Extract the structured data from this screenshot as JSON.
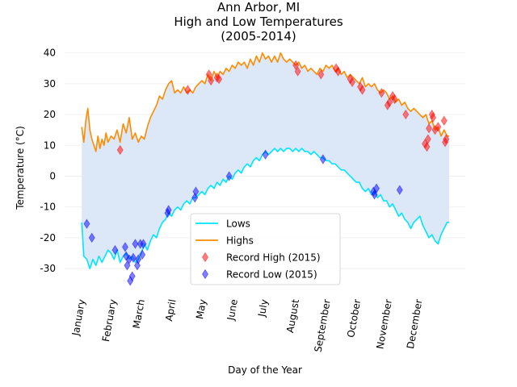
{
  "chart_data": {
    "type": "line",
    "title": [
      "Ann Arbor, MI",
      "High and Low Temperatures",
      "(2005-2014)"
    ],
    "xlabel": "Day of the Year",
    "ylabel": "Temperature (°C)",
    "xlim": [
      -16,
      381
    ],
    "ylim": [
      -36,
      42
    ],
    "yticks": [
      -30,
      -20,
      -10,
      0,
      10,
      20,
      30,
      40
    ],
    "grid": true,
    "legend_position": "lower-center",
    "month_ticks": [
      {
        "day": 1,
        "label": "January"
      },
      {
        "day": 32,
        "label": "February"
      },
      {
        "day": 60,
        "label": "March"
      },
      {
        "day": 91,
        "label": "April"
      },
      {
        "day": 121,
        "label": "May"
      },
      {
        "day": 152,
        "label": "June"
      },
      {
        "day": 182,
        "label": "July"
      },
      {
        "day": 213,
        "label": "August"
      },
      {
        "day": 244,
        "label": "September"
      },
      {
        "day": 274,
        "label": "October"
      },
      {
        "day": 305,
        "label": "November"
      },
      {
        "day": 335,
        "label": "December"
      }
    ],
    "fill_color": "#dce8f8",
    "series": [
      {
        "name": "Lows",
        "color": "#00e5ff",
        "points": [
          [
            1,
            -15
          ],
          [
            3,
            -26
          ],
          [
            6,
            -27
          ],
          [
            9,
            -30
          ],
          [
            12,
            -27
          ],
          [
            15,
            -29
          ],
          [
            18,
            -26
          ],
          [
            21,
            -28
          ],
          [
            24,
            -26
          ],
          [
            27,
            -24
          ],
          [
            30,
            -25
          ],
          [
            33,
            -27
          ],
          [
            36,
            -24
          ],
          [
            39,
            -28
          ],
          [
            42,
            -26
          ],
          [
            45,
            -25
          ],
          [
            48,
            -27
          ],
          [
            51,
            -26
          ],
          [
            54,
            -28
          ],
          [
            57,
            -27
          ],
          [
            60,
            -25
          ],
          [
            63,
            -22
          ],
          [
            66,
            -24
          ],
          [
            69,
            -21
          ],
          [
            72,
            -19
          ],
          [
            75,
            -20
          ],
          [
            78,
            -17
          ],
          [
            81,
            -15
          ],
          [
            84,
            -14
          ],
          [
            87,
            -12
          ],
          [
            90,
            -13
          ],
          [
            93,
            -11
          ],
          [
            96,
            -10
          ],
          [
            99,
            -11
          ],
          [
            102,
            -9
          ],
          [
            105,
            -8
          ],
          [
            108,
            -9
          ],
          [
            111,
            -7
          ],
          [
            114,
            -7
          ],
          [
            117,
            -6
          ],
          [
            120,
            -5
          ],
          [
            123,
            -6
          ],
          [
            126,
            -4
          ],
          [
            129,
            -3
          ],
          [
            132,
            -4
          ],
          [
            135,
            -2
          ],
          [
            138,
            -3
          ],
          [
            141,
            -1
          ],
          [
            144,
            -2
          ],
          [
            147,
            0
          ],
          [
            150,
            -1
          ],
          [
            153,
            1
          ],
          [
            156,
            2
          ],
          [
            159,
            1
          ],
          [
            162,
            3
          ],
          [
            165,
            4
          ],
          [
            168,
            3
          ],
          [
            171,
            5
          ],
          [
            174,
            6
          ],
          [
            177,
            5
          ],
          [
            180,
            7
          ],
          [
            183,
            8
          ],
          [
            186,
            7
          ],
          [
            189,
            8
          ],
          [
            192,
            9
          ],
          [
            195,
            8
          ],
          [
            198,
            9
          ],
          [
            201,
            8
          ],
          [
            204,
            9
          ],
          [
            207,
            9
          ],
          [
            210,
            8
          ],
          [
            213,
            9
          ],
          [
            216,
            8
          ],
          [
            219,
            9
          ],
          [
            222,
            8
          ],
          [
            225,
            8
          ],
          [
            228,
            7
          ],
          [
            231,
            8
          ],
          [
            234,
            7
          ],
          [
            237,
            6
          ],
          [
            240,
            6
          ],
          [
            243,
            5
          ],
          [
            246,
            5
          ],
          [
            249,
            4
          ],
          [
            252,
            4
          ],
          [
            255,
            3
          ],
          [
            258,
            2
          ],
          [
            261,
            2
          ],
          [
            264,
            1
          ],
          [
            267,
            0
          ],
          [
            270,
            -1
          ],
          [
            273,
            -2
          ],
          [
            276,
            -2
          ],
          [
            279,
            -4
          ],
          [
            282,
            -5
          ],
          [
            285,
            -4
          ],
          [
            288,
            -6
          ],
          [
            291,
            -5
          ],
          [
            294,
            -7
          ],
          [
            297,
            -6
          ],
          [
            300,
            -8
          ],
          [
            303,
            -8
          ],
          [
            306,
            -10
          ],
          [
            309,
            -9
          ],
          [
            312,
            -11
          ],
          [
            315,
            -13
          ],
          [
            318,
            -12
          ],
          [
            321,
            -14
          ],
          [
            324,
            -15
          ],
          [
            327,
            -17
          ],
          [
            330,
            -15
          ],
          [
            333,
            -14
          ],
          [
            336,
            -13
          ],
          [
            339,
            -16
          ],
          [
            342,
            -18
          ],
          [
            345,
            -20
          ],
          [
            348,
            -19
          ],
          [
            351,
            -21
          ],
          [
            354,
            -22
          ],
          [
            357,
            -19
          ],
          [
            360,
            -17
          ],
          [
            363,
            -15
          ],
          [
            365,
            -15
          ]
        ]
      },
      {
        "name": "Highs",
        "color": "#ff8c00",
        "points": [
          [
            1,
            16
          ],
          [
            3,
            11
          ],
          [
            5,
            18
          ],
          [
            7,
            22
          ],
          [
            9,
            15
          ],
          [
            11,
            12
          ],
          [
            13,
            10
          ],
          [
            15,
            8
          ],
          [
            17,
            13
          ],
          [
            19,
            9
          ],
          [
            21,
            12
          ],
          [
            23,
            10
          ],
          [
            25,
            14
          ],
          [
            27,
            11
          ],
          [
            30,
            13
          ],
          [
            33,
            12
          ],
          [
            36,
            15
          ],
          [
            39,
            11
          ],
          [
            42,
            17
          ],
          [
            45,
            14
          ],
          [
            48,
            19
          ],
          [
            51,
            12
          ],
          [
            54,
            14
          ],
          [
            57,
            11
          ],
          [
            60,
            13
          ],
          [
            63,
            12
          ],
          [
            66,
            16
          ],
          [
            69,
            19
          ],
          [
            72,
            21
          ],
          [
            75,
            23
          ],
          [
            78,
            26
          ],
          [
            81,
            25
          ],
          [
            84,
            28
          ],
          [
            87,
            30
          ],
          [
            90,
            31
          ],
          [
            93,
            27
          ],
          [
            96,
            28
          ],
          [
            99,
            27
          ],
          [
            102,
            29
          ],
          [
            105,
            27
          ],
          [
            108,
            28
          ],
          [
            111,
            27
          ],
          [
            114,
            29
          ],
          [
            117,
            30
          ],
          [
            120,
            31
          ],
          [
            123,
            30
          ],
          [
            126,
            33
          ],
          [
            129,
            31
          ],
          [
            132,
            34
          ],
          [
            135,
            32
          ],
          [
            138,
            34
          ],
          [
            141,
            33
          ],
          [
            144,
            35
          ],
          [
            147,
            34
          ],
          [
            150,
            36
          ],
          [
            153,
            35
          ],
          [
            156,
            37
          ],
          [
            159,
            36
          ],
          [
            162,
            37
          ],
          [
            165,
            35
          ],
          [
            168,
            38
          ],
          [
            171,
            36
          ],
          [
            174,
            39
          ],
          [
            177,
            37
          ],
          [
            180,
            40
          ],
          [
            183,
            38
          ],
          [
            186,
            39
          ],
          [
            189,
            37
          ],
          [
            192,
            39
          ],
          [
            195,
            37
          ],
          [
            198,
            40
          ],
          [
            201,
            38
          ],
          [
            204,
            37
          ],
          [
            207,
            38
          ],
          [
            210,
            37
          ],
          [
            213,
            36
          ],
          [
            216,
            37
          ],
          [
            219,
            35
          ],
          [
            222,
            36
          ],
          [
            225,
            34
          ],
          [
            228,
            35
          ],
          [
            231,
            34
          ],
          [
            234,
            33
          ],
          [
            237,
            35
          ],
          [
            240,
            34
          ],
          [
            243,
            36
          ],
          [
            246,
            35
          ],
          [
            249,
            36
          ],
          [
            252,
            34
          ],
          [
            255,
            35
          ],
          [
            258,
            33
          ],
          [
            261,
            34
          ],
          [
            264,
            32
          ],
          [
            267,
            33
          ],
          [
            270,
            32
          ],
          [
            273,
            31
          ],
          [
            276,
            30
          ],
          [
            279,
            32
          ],
          [
            282,
            29
          ],
          [
            285,
            30
          ],
          [
            288,
            29
          ],
          [
            291,
            30
          ],
          [
            294,
            28
          ],
          [
            297,
            27
          ],
          [
            300,
            28
          ],
          [
            303,
            27
          ],
          [
            306,
            25
          ],
          [
            309,
            26
          ],
          [
            312,
            24
          ],
          [
            315,
            25
          ],
          [
            318,
            23
          ],
          [
            321,
            24
          ],
          [
            324,
            22
          ],
          [
            327,
            21
          ],
          [
            330,
            22
          ],
          [
            333,
            21
          ],
          [
            336,
            20
          ],
          [
            339,
            19
          ],
          [
            342,
            20
          ],
          [
            345,
            17
          ],
          [
            348,
            18
          ],
          [
            351,
            15
          ],
          [
            354,
            16
          ],
          [
            357,
            13
          ],
          [
            360,
            15
          ],
          [
            363,
            13
          ],
          [
            365,
            13
          ]
        ]
      },
      {
        "name": "Record High (2015)",
        "color": "#ff0000",
        "marker": "diamond",
        "points": [
          [
            39,
            8.5
          ],
          [
            106,
            28
          ],
          [
            127,
            33
          ],
          [
            129,
            31
          ],
          [
            135,
            32
          ],
          [
            137,
            31.5
          ],
          [
            213,
            36
          ],
          [
            215,
            34
          ],
          [
            238,
            33
          ],
          [
            253,
            35
          ],
          [
            255,
            34
          ],
          [
            267,
            31.5
          ],
          [
            269,
            30.5
          ],
          [
            277,
            29
          ],
          [
            279,
            28
          ],
          [
            298,
            27
          ],
          [
            304,
            23
          ],
          [
            306,
            24
          ],
          [
            309,
            26
          ],
          [
            311,
            25
          ],
          [
            322,
            20
          ],
          [
            341,
            10.5
          ],
          [
            343,
            9.5
          ],
          [
            344,
            12
          ],
          [
            345,
            15.5
          ],
          [
            348,
            20
          ],
          [
            349,
            19
          ],
          [
            351,
            15
          ],
          [
            354,
            16
          ],
          [
            360,
            18
          ],
          [
            361,
            11
          ],
          [
            362,
            12
          ]
        ]
      },
      {
        "name": "Record Low (2015)",
        "color": "#0000ff",
        "marker": "diamond",
        "points": [
          [
            6,
            -15.5
          ],
          [
            11,
            -20
          ],
          [
            34,
            -24
          ],
          [
            44,
            -23
          ],
          [
            45,
            -26
          ],
          [
            46,
            -29
          ],
          [
            48,
            -27
          ],
          [
            49,
            -34
          ],
          [
            51,
            -32.5
          ],
          [
            52,
            -26.5
          ],
          [
            54,
            -22
          ],
          [
            56,
            -29
          ],
          [
            57,
            -27
          ],
          [
            59,
            -22
          ],
          [
            61,
            -25.5
          ],
          [
            62,
            -22
          ],
          [
            86,
            -12
          ],
          [
            87,
            -11
          ],
          [
            113,
            -7
          ],
          [
            114,
            -5
          ],
          [
            147,
            0
          ],
          [
            183,
            7
          ],
          [
            240,
            5.5
          ],
          [
            290,
            -5
          ],
          [
            291,
            -6
          ],
          [
            293,
            -4
          ],
          [
            316,
            -4.5
          ]
        ]
      }
    ]
  }
}
